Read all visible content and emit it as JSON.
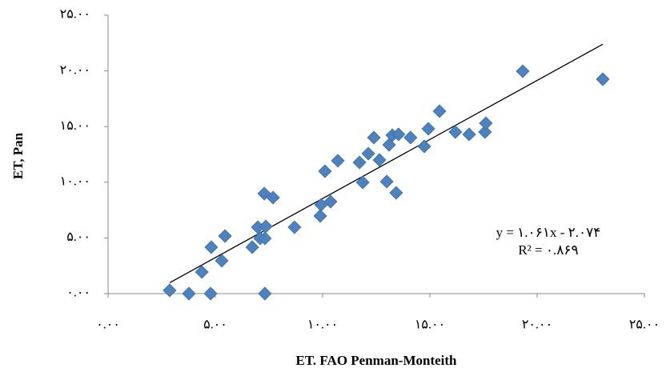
{
  "chart_data": {
    "type": "scatter",
    "xlabel": "ET. FAO Penman-Monteith",
    "ylabel": "ET, Pan",
    "color": "#4f81bd",
    "x": [
      2.87,
      3.77,
      4.78,
      4.37,
      4.81,
      5.3,
      5.45,
      6.72,
      6.98,
      7.09,
      7.31,
      7.35,
      7.31,
      7.28,
      7.69,
      8.69,
      9.89,
      9.93,
      10.37,
      10.11,
      10.71,
      11.72,
      11.87,
      12.13,
      12.39,
      12.65,
      12.99,
      13.1,
      13.25,
      13.54,
      13.43,
      14.1,
      14.74,
      14.93,
      15.45,
      16.19,
      16.83,
      17.57,
      17.61,
      19.33,
      23.06
    ],
    "values": [
      0.29,
      0,
      0,
      1.94,
      4.17,
      2.95,
      5.17,
      4.17,
      5.96,
      4.96,
      4.96,
      6.03,
      0,
      8.98,
      8.62,
      5.96,
      6.97,
      7.97,
      8.26,
      10.99,
      11.93,
      11.78,
      9.99,
      12.57,
      14.01,
      12.0,
      10.06,
      13.36,
      14.22,
      14.3,
      9.05,
      14.01,
      13.22,
      14.8,
      16.38,
      14.51,
      14.3,
      14.51,
      15.3,
      19.97,
      19.25
    ],
    "xlim": [
      0,
      25
    ],
    "ylim": [
      0,
      25
    ],
    "xticks": [
      {
        "value": 0,
        "label": "۰.۰۰"
      },
      {
        "value": 5,
        "label": "۵.۰۰"
      },
      {
        "value": 10,
        "label": "۱۰.۰۰"
      },
      {
        "value": 15,
        "label": "۱۵.۰۰"
      },
      {
        "value": 20,
        "label": "۲۰.۰۰"
      },
      {
        "value": 25,
        "label": "۲۵.۰۰"
      }
    ],
    "yticks": [
      {
        "value": 0,
        "label": "۰.۰۰"
      },
      {
        "value": 5,
        "label": "۵.۰۰"
      },
      {
        "value": 10,
        "label": "۱۰.۰۰"
      },
      {
        "value": 15,
        "label": "۱۵.۰۰"
      },
      {
        "value": 20,
        "label": "۲۰.۰۰"
      },
      {
        "value": 25,
        "label": "۲۵.۰۰"
      }
    ],
    "grid": false,
    "trendline": {
      "slope": 1.061,
      "intercept": -2.074,
      "equation": "y = ۱.۰۶۱x - ۲.۰۷۴",
      "r2": "R² = ۰.۸۶۹"
    }
  }
}
